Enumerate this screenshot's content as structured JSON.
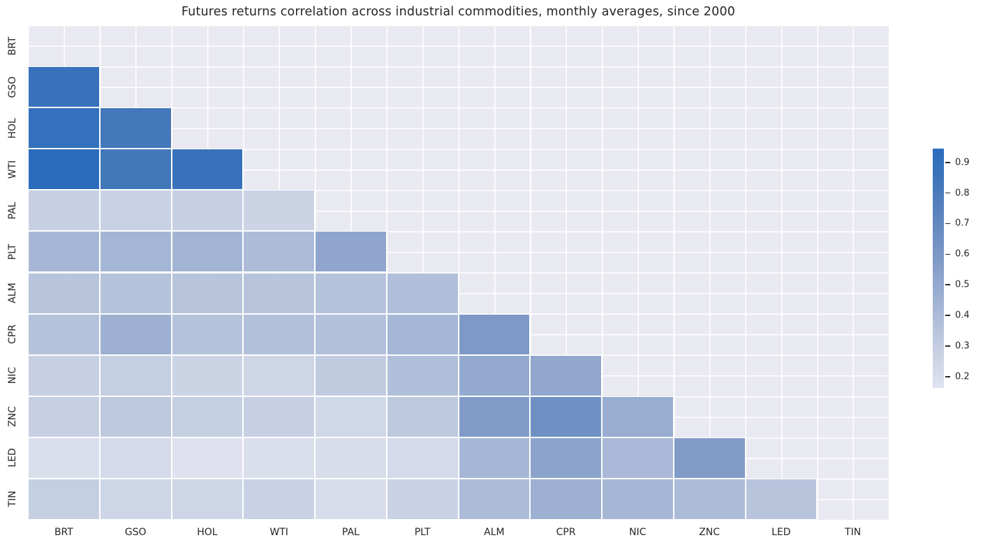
{
  "title": "Futures returns correlation across industrial commodities, monthly averages, since 2000",
  "chart_data": {
    "type": "heatmap",
    "title": "Futures returns correlation across industrial commodities, monthly averages, since 2000",
    "x_labels": [
      "BRT",
      "GSO",
      "HOL",
      "WTI",
      "PAL",
      "PLT",
      "ALM",
      "CPR",
      "NIC",
      "ZNC",
      "LED",
      "TIN"
    ],
    "y_labels": [
      "BRT",
      "GSO",
      "HOL",
      "WTI",
      "PAL",
      "PLT",
      "ALM",
      "CPR",
      "NIC",
      "ZNC",
      "LED",
      "TIN"
    ],
    "mask": "upper triangle including diagonal (only correlations below the diagonal are shown)",
    "grid": true,
    "legend_position": "colorbar-right",
    "vmin": 0.163,
    "vmax": 0.945,
    "matrix": [
      [
        null,
        null,
        null,
        null,
        null,
        null,
        null,
        null,
        null,
        null,
        null,
        null
      ],
      [
        0.87,
        null,
        null,
        null,
        null,
        null,
        null,
        null,
        null,
        null,
        null,
        null
      ],
      [
        0.9,
        0.82,
        null,
        null,
        null,
        null,
        null,
        null,
        null,
        null,
        null,
        null
      ],
      [
        0.94,
        0.83,
        0.87,
        null,
        null,
        null,
        null,
        null,
        null,
        null,
        null,
        null
      ],
      [
        0.28,
        0.27,
        0.28,
        0.26,
        null,
        null,
        null,
        null,
        null,
        null,
        null,
        null
      ],
      [
        0.42,
        0.43,
        0.44,
        0.4,
        0.52,
        null,
        null,
        null,
        null,
        null,
        null,
        null
      ],
      [
        0.35,
        0.36,
        0.35,
        0.35,
        0.36,
        0.38,
        null,
        null,
        null,
        null,
        null,
        null
      ],
      [
        0.36,
        0.46,
        0.36,
        0.37,
        0.37,
        0.42,
        0.59,
        null,
        null,
        null,
        null,
        null
      ],
      [
        0.28,
        0.29,
        0.26,
        0.25,
        0.31,
        0.38,
        0.5,
        0.51,
        null,
        null,
        null,
        null
      ],
      [
        0.28,
        0.32,
        0.29,
        0.28,
        0.24,
        0.33,
        0.58,
        0.65,
        0.48,
        null,
        null,
        null
      ],
      [
        0.19,
        0.22,
        0.17,
        0.19,
        0.2,
        0.22,
        0.42,
        0.53,
        0.41,
        0.58,
        null,
        null
      ],
      [
        0.29,
        0.25,
        0.25,
        0.27,
        0.2,
        0.27,
        0.4,
        0.46,
        0.42,
        0.4,
        0.35,
        null
      ]
    ],
    "colormap_anchors": [
      [
        0.163,
        "#e0e3ef"
      ],
      [
        0.3,
        "#c3cde1"
      ],
      [
        0.45,
        "#9fb2d3"
      ],
      [
        0.6,
        "#7c97c6"
      ],
      [
        0.75,
        "#5681bc"
      ],
      [
        0.85,
        "#3d74ba"
      ],
      [
        0.945,
        "#2b6cbd"
      ]
    ],
    "colorbar_ticks": [
      "0.9",
      "0.8",
      "0.7",
      "0.6",
      "0.5",
      "0.4",
      "0.3",
      "0.2"
    ]
  },
  "colors": {
    "figure_background": "#ffffff",
    "axes_background": "#e9e9f1",
    "gridline": "#ffffff",
    "text": "#262626",
    "accent_high": "#2b6cbd",
    "accent_low": "#e0e3ef"
  }
}
